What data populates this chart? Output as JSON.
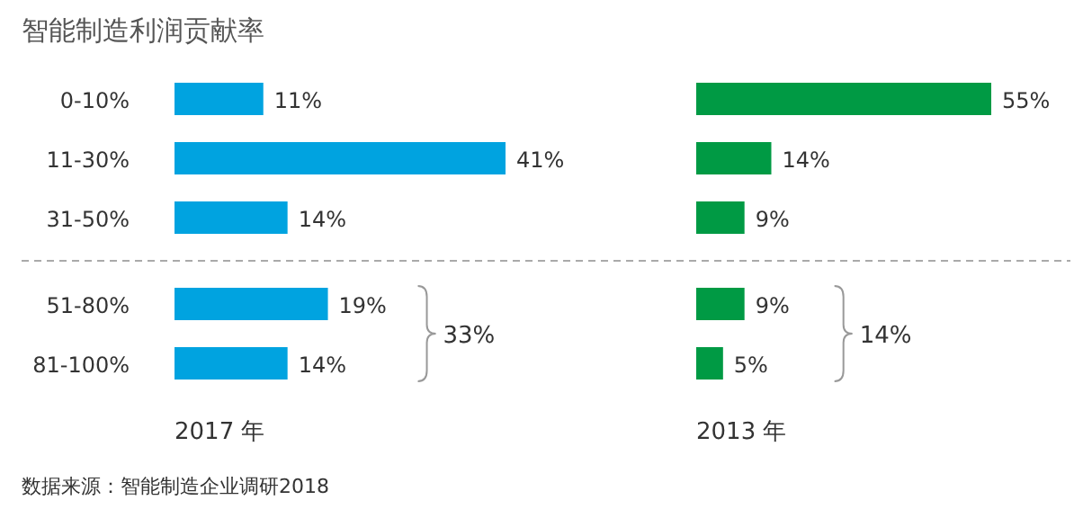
{
  "chart_data": [
    {
      "type": "bar",
      "orientation": "horizontal",
      "title": "智能制造利润贡献率",
      "xlabel": "2017 年",
      "categories": [
        "0-10%",
        "11-30%",
        "31-50%",
        "51-80%",
        "81-100%"
      ],
      "values": [
        11,
        41,
        14,
        19,
        14
      ],
      "color": "#00a3e0",
      "value_labels": [
        "11%",
        "41%",
        "14%",
        "19%",
        "14%"
      ],
      "tick_labels": "y",
      "annotations": [
        "33%",
        "数据来源：智能制造企业调研2018"
      ]
    },
    {
      "type": "bar",
      "orientation": "horizontal",
      "xlabel": "2013 年",
      "categories": [
        null,
        null,
        null,
        null,
        null
      ],
      "values": [
        55,
        14,
        9,
        9,
        5
      ],
      "color": "#009a44",
      "value_labels": [
        "55%",
        "14%",
        "9%",
        "9%",
        "5%"
      ],
      "tick_labels": false,
      "annotations": [
        "14%"
      ]
    }
  ]
}
